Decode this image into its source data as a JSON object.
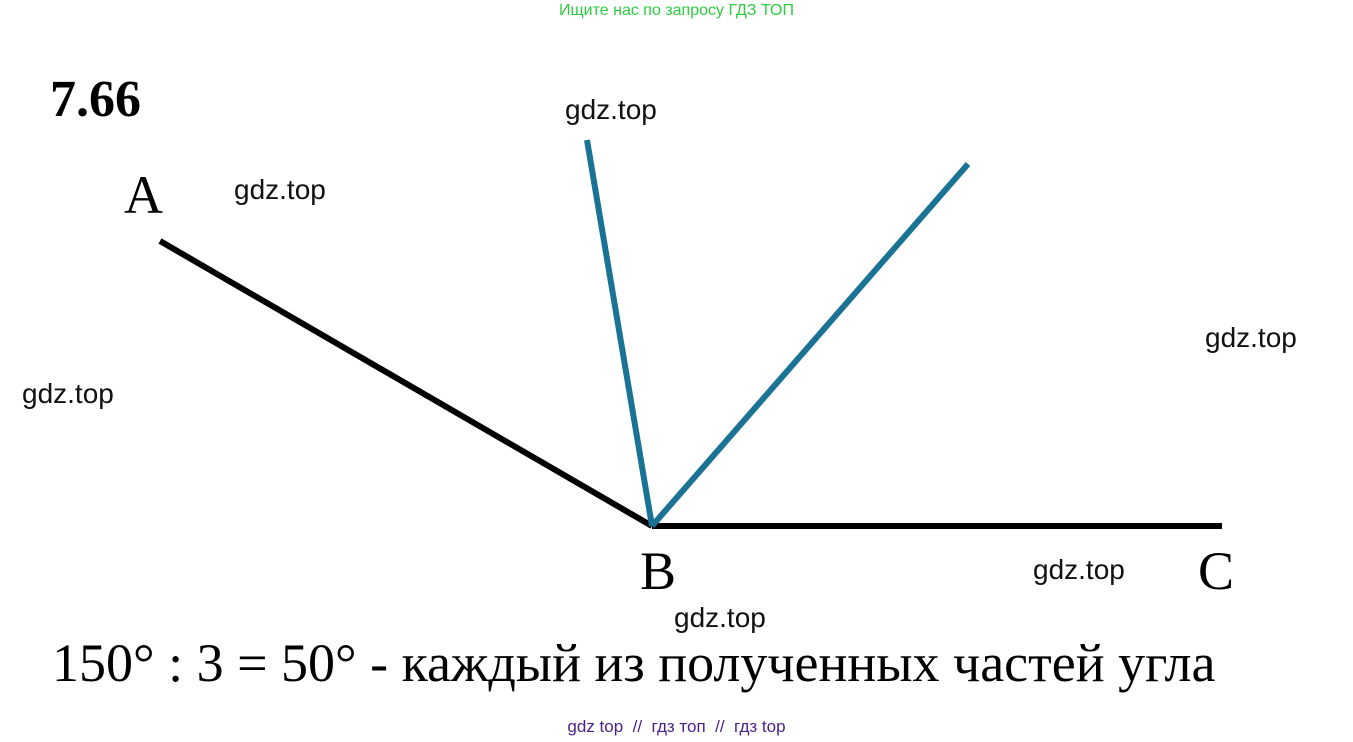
{
  "header": {
    "banner": "Ищите нас по запросу ГДЗ ТОП"
  },
  "problem": {
    "number": "7.66"
  },
  "diagram": {
    "labels": {
      "a": "A",
      "b": "B",
      "c": "C"
    },
    "watermarks": [
      "gdz.top",
      "gdz.top",
      "gdz.top",
      "gdz.top",
      "gdz.top",
      "gdz.top"
    ]
  },
  "solution": "150° : 3 = 50° - каждый из полученных частей угла",
  "footer": {
    "links": [
      "gdz top",
      "гдз топ",
      "гдз top"
    ],
    "separator": "//"
  }
}
